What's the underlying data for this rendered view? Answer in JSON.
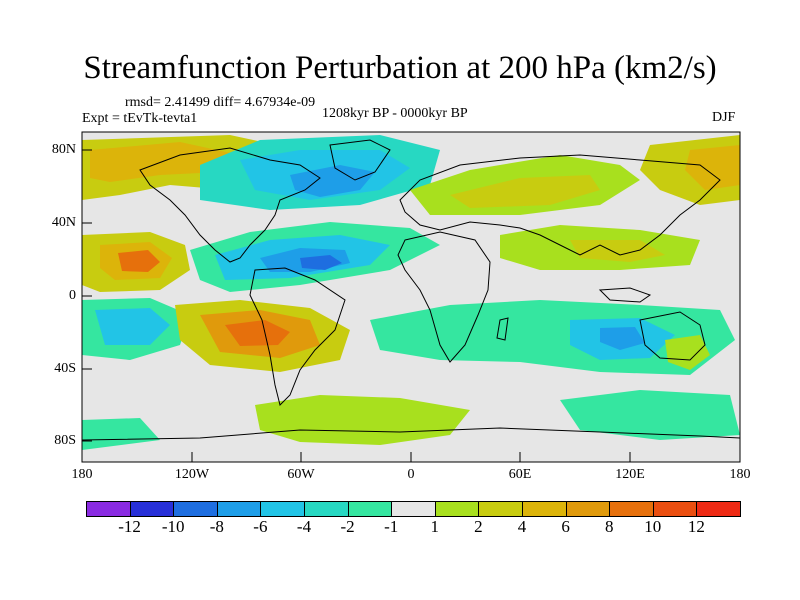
{
  "title": "Streamfunction Perturbation at 200 hPa (km2/s)",
  "stats": "rmsd= 2.41499 diff= 4.67934e-09",
  "experiment": "Expt = tEvTk-tevta1",
  "period": "1208kyr BP - 0000kyr BP",
  "season": "DJF",
  "y_axis": {
    "ticks": [
      "80N",
      "40N",
      "0",
      "40S",
      "80S"
    ]
  },
  "x_axis": {
    "ticks": [
      "180",
      "120W",
      "60W",
      "0",
      "60E",
      "120E",
      "180"
    ]
  },
  "colorbar": {
    "colors": [
      "#8a2be2",
      "#2830d8",
      "#1e6ee0",
      "#1e9ee8",
      "#22c4e6",
      "#27d8c2",
      "#35e6a0",
      "#e6e6e6",
      "#a8e01e",
      "#c8cc10",
      "#dcb40a",
      "#e09a0c",
      "#e6700c",
      "#ea4e10",
      "#ee2a14"
    ],
    "labels": [
      "-12",
      "-10",
      "-8",
      "-6",
      "-4",
      "-2",
      "-1",
      "1",
      "2",
      "4",
      "6",
      "8",
      "10",
      "12"
    ]
  },
  "colors": {
    "background": "#e6e6e6",
    "coast": "#000000"
  }
}
